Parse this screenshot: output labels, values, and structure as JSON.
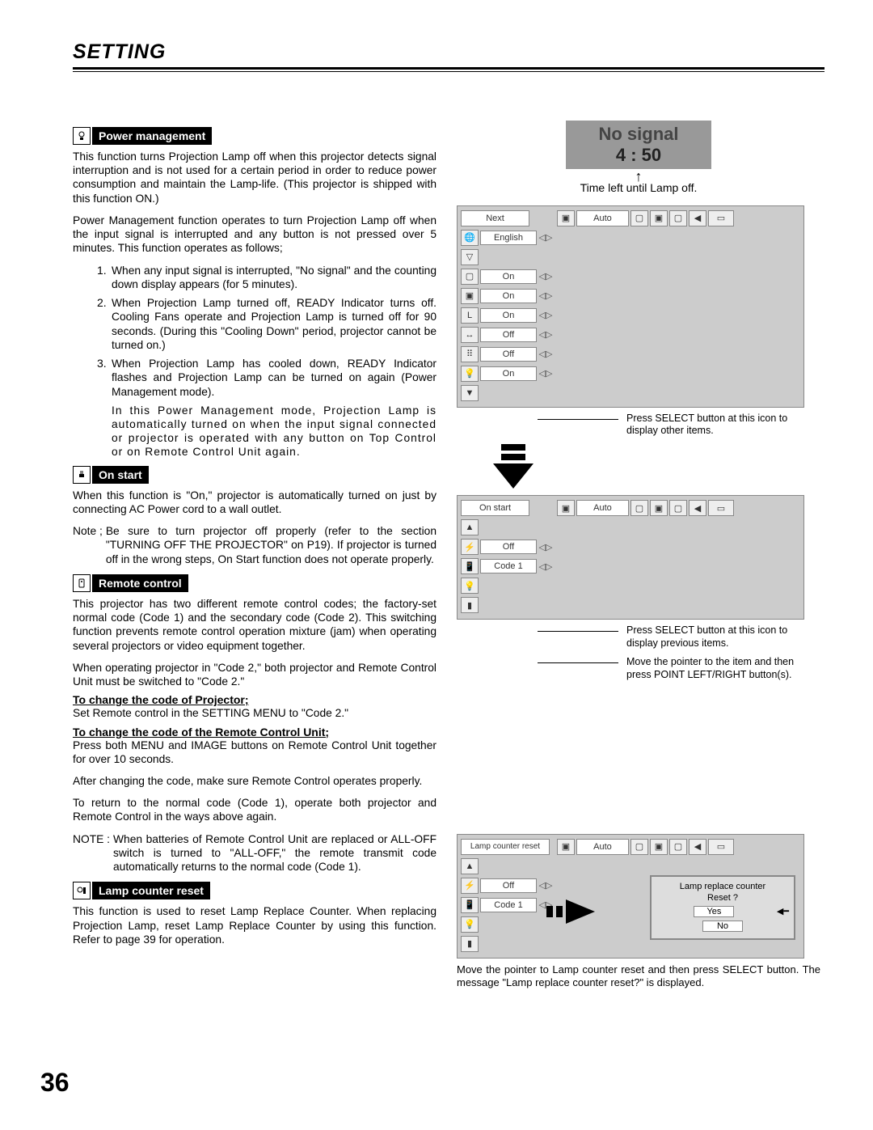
{
  "page": {
    "title": "SETTING",
    "number": "36"
  },
  "sections": {
    "power_mgmt": {
      "label": "Power management",
      "p1": "This function turns Projection Lamp off when this projector detects signal interruption and is not used for a certain period in order to reduce power consumption and maintain the Lamp-life.  (This projector is shipped with this function ON.)",
      "p2": "Power Management function operates to turn Projection Lamp off when the input signal is interrupted and any button is not pressed over 5 minutes.  This function operates as follows;",
      "li1": "When any input signal is interrupted, \"No signal\" and the counting down display appears (for 5 minutes).",
      "li2": "When Projection Lamp turned off, READY Indicator turns off. Cooling Fans operate and Projection Lamp is turned off for 90 seconds.  (During this \"Cooling Down\" period, projector cannot be turned on.)",
      "li3": "When Projection Lamp has cooled down, READY Indicator flashes and Projection Lamp can be turned on again (Power Management mode).",
      "li3b": "In this Power Management mode, Projection Lamp is automatically turned on when the input signal connected or projector is operated with any button on Top Control or on Remote Control Unit again."
    },
    "on_start": {
      "label": "On start",
      "p1": "When this function is \"On,\" projector is automatically turned on just by connecting AC Power cord to a wall outlet.",
      "note_lbl": "Note ; ",
      "note": "Be sure to turn projector off properly (refer to the section \"TURNING OFF THE PROJECTOR\" on P19).  If projector is turned off in the wrong steps, On Start function does not operate properly."
    },
    "remote": {
      "label": "Remote control",
      "p1": "This projector has two different remote control codes; the factory-set normal code (Code 1) and the secondary code (Code 2).  This switching function prevents remote control operation mixture (jam) when operating several projectors or video equipment together.",
      "p2": "When operating projector in \"Code 2,\"  both projector and Remote Control Unit must be switched to \"Code 2.\"",
      "h1": "To change the code of Projector;",
      "p3": "Set Remote control in the SETTING MENU to \"Code 2.\"",
      "h2": "To change the code of the Remote Control Unit;",
      "p4": "Press both MENU and IMAGE buttons on Remote Control Unit together for over 10 seconds.",
      "p5": "After changing the code, make sure Remote Control operates properly.",
      "p6": "To return to the normal code (Code 1), operate both projector and Remote Control in the ways above again.",
      "note_lbl": "NOTE : ",
      "note": "When batteries of Remote Control Unit are replaced or ALL-OFF switch is turned to \"ALL-OFF,\" the remote transmit code automatically returns to the normal code (Code 1)."
    },
    "lamp_reset": {
      "label": "Lamp counter reset",
      "p1": "This function is used to reset Lamp Replace Counter.  When replacing Projection Lamp, reset Lamp Replace Counter by using this function.  Refer to page 39 for operation."
    }
  },
  "right": {
    "nosignal": {
      "t1": "No signal",
      "t2": "4 : 50"
    },
    "timeleft": "Time left until Lamp off.",
    "panel1": {
      "title": "Next",
      "mode": "Auto",
      "rows": [
        {
          "icon": "globe",
          "val": "English"
        },
        {
          "icon": "tri",
          "val": ""
        },
        {
          "icon": "sq",
          "val": "On"
        },
        {
          "icon": "sq2",
          "val": "On"
        },
        {
          "icon": "L",
          "val": "On"
        },
        {
          "icon": "arr",
          "val": "Off"
        },
        {
          "icon": "dots",
          "val": "Off"
        },
        {
          "icon": "lamp",
          "val": "On"
        }
      ]
    },
    "callout1": "Press SELECT button at this icon to display other items.",
    "panel2": {
      "title": "On start",
      "mode": "Auto",
      "rows": [
        {
          "icon": "up",
          "val": ""
        },
        {
          "icon": "plug",
          "val": "Off"
        },
        {
          "icon": "rc",
          "val": "Code 1"
        },
        {
          "icon": "lamp2",
          "val": ""
        },
        {
          "icon": "bar",
          "val": ""
        }
      ]
    },
    "callout2": "Press SELECT button at this icon to display previous items.",
    "callout3": "Move the pointer to the item and then press POINT LEFT/RIGHT button(s).",
    "panel3": {
      "title": "Lamp counter reset",
      "mode": "Auto",
      "rows": [
        {
          "icon": "up",
          "val": ""
        },
        {
          "icon": "plug",
          "val": "Off"
        },
        {
          "icon": "rc",
          "val": "Code 1"
        },
        {
          "icon": "lamp2",
          "val": ""
        },
        {
          "icon": "bar",
          "val": ""
        }
      ],
      "dialog": {
        "l1": "Lamp replace counter",
        "l2": "Reset ?",
        "yes": "Yes",
        "no": "No"
      }
    },
    "figcap3": "Move the pointer to Lamp counter reset and then press SELECT button.  The message \"Lamp replace counter reset?\" is displayed."
  }
}
